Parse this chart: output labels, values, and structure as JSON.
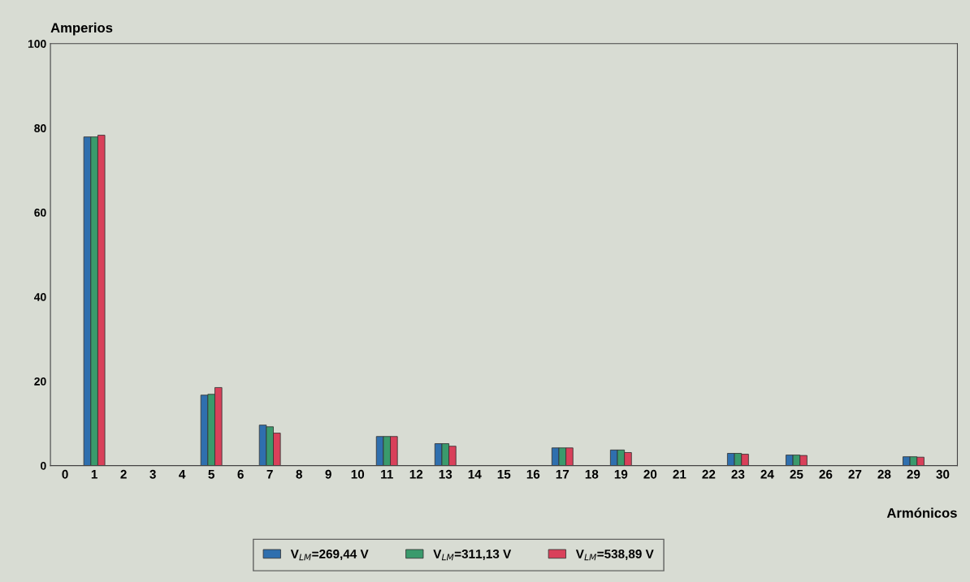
{
  "chart_data": {
    "type": "bar",
    "ylabel": "Amperios",
    "xlabel": "Armónicos",
    "categories": [
      "0",
      "1",
      "2",
      "3",
      "4",
      "5",
      "6",
      "7",
      "8",
      "9",
      "10",
      "11",
      "12",
      "13",
      "14",
      "15",
      "16",
      "17",
      "18",
      "19",
      "20",
      "21",
      "22",
      "23",
      "24",
      "25",
      "26",
      "27",
      "28",
      "29",
      "30"
    ],
    "series": [
      {
        "name": "V$_{LM}$=269,44 V",
        "color": "#2f6fae",
        "values": [
          0,
          77.9,
          0,
          0,
          0,
          16.7,
          0,
          9.6,
          0,
          0,
          0,
          6.9,
          0,
          5.2,
          0,
          0,
          0,
          4.2,
          0,
          3.7,
          0,
          0,
          0,
          2.9,
          0,
          2.5,
          0,
          0,
          0,
          2.1,
          0
        ]
      },
      {
        "name": "V$_{LM}$=311,13 V",
        "color": "#3a9a6c",
        "values": [
          0,
          77.9,
          0,
          0,
          0,
          16.9,
          0,
          9.2,
          0,
          0,
          0,
          6.9,
          0,
          5.2,
          0,
          0,
          0,
          4.2,
          0,
          3.7,
          0,
          0,
          0,
          2.9,
          0,
          2.5,
          0,
          0,
          0,
          2.1,
          0
        ]
      },
      {
        "name": "V$_{LM}$=538,89 V",
        "color": "#d9405a",
        "values": [
          0,
          78.3,
          0,
          0,
          0,
          18.5,
          0,
          7.7,
          0,
          0,
          0,
          6.9,
          0,
          4.6,
          0,
          0,
          0,
          4.2,
          0,
          3.1,
          0,
          0,
          0,
          2.7,
          0,
          2.4,
          0,
          0,
          0,
          2.0,
          0
        ]
      }
    ],
    "ylim": [
      0,
      100
    ],
    "yticks": [
      0,
      20,
      40,
      60,
      80,
      100
    ],
    "grid": false,
    "legend": "bottom"
  }
}
